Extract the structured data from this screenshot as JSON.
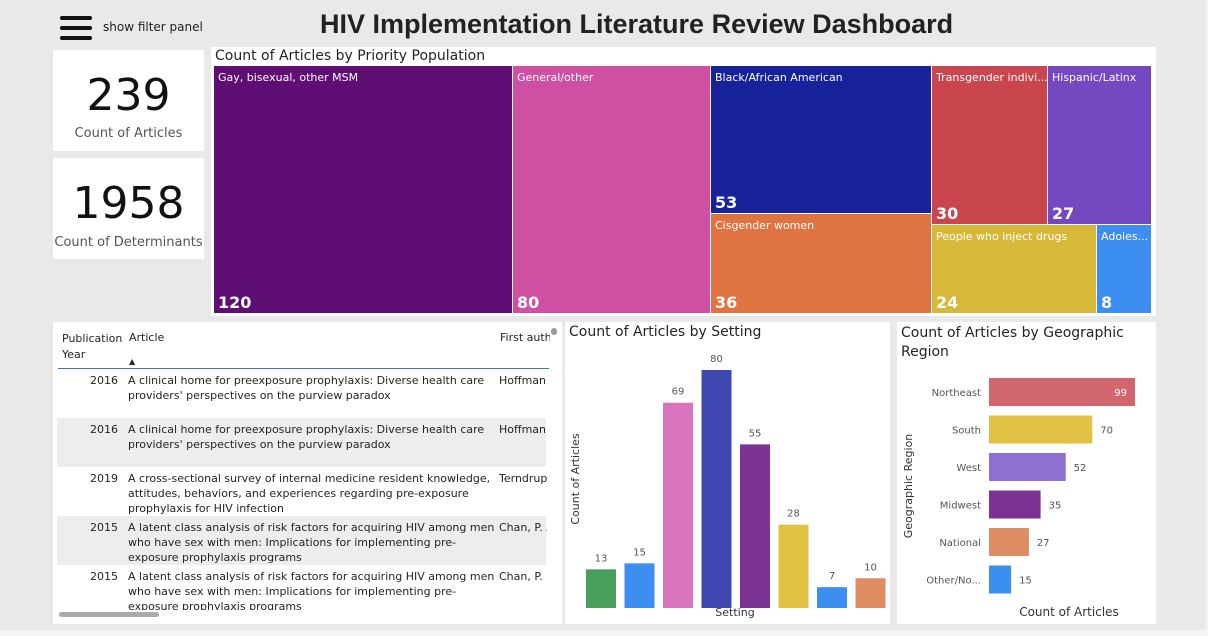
{
  "header": {
    "filter_label": "show filter panel",
    "title": "HIV Implementation Literature Review Dashboard"
  },
  "kpis": [
    {
      "value": "239",
      "label": "Count of Articles"
    },
    {
      "value": "1958",
      "label": "Count of Determinants"
    }
  ],
  "treemap": {
    "title": "Count of Articles by Priority Population",
    "tiles": [
      {
        "label": "Gay, bisexual, other MSM",
        "value": "120",
        "color": "#5f0e73"
      },
      {
        "label": "General/other",
        "value": "80",
        "color": "#cf4fa3"
      },
      {
        "label": "Black/African American",
        "value": "53",
        "color": "#16219a"
      },
      {
        "label": "Cisgender women",
        "value": "36",
        "color": "#e07342"
      },
      {
        "label": "Transgender indivi...",
        "value": "30",
        "color": "#c9464e"
      },
      {
        "label": "Hispanic/Latinx",
        "value": "27",
        "color": "#7348c1"
      },
      {
        "label": "People who inject drugs",
        "value": "24",
        "color": "#d8b839"
      },
      {
        "label": "Adoles...",
        "value": "8",
        "color": "#3d8ef1"
      }
    ]
  },
  "table": {
    "headers": {
      "year": "Publication Year",
      "article": "Article",
      "author": "First autho"
    },
    "sort_indicator": "▲",
    "rows": [
      {
        "year": "2016",
        "article": "A clinical home for preexposure prophylaxis: Diverse health care providers' perspectives on the purview paradox",
        "author": "Hoffman,"
      },
      {
        "year": "2016",
        "article": "A clinical home for preexposure prophylaxis: Diverse health care providers' perspectives on the purview paradox",
        "author": "Hoffman,"
      },
      {
        "year": "2019",
        "article": "A cross-sectional survey of internal medicine resident knowledge, attitudes, behaviors, and experiences regarding pre-exposure prophylaxis for HIV infection",
        "author": "Terndrup,"
      },
      {
        "year": "2015",
        "article": "A latent class analysis of risk factors for acquiring HIV among men who have sex with men: Implications for implementing pre-exposure prophylaxis programs",
        "author": "Chan, P. A"
      },
      {
        "year": "2015",
        "article": "A latent class analysis of risk factors for acquiring HIV among men who have sex with men: Implications for implementing pre-exposure prophylaxis programs",
        "author": "Chan, P. A"
      }
    ]
  },
  "chart_data": [
    {
      "type": "bar",
      "title": "Count of Articles by Setting",
      "xlabel": "Setting",
      "ylabel": "Count of Articles",
      "values": [
        13,
        15,
        69,
        80,
        55,
        28,
        7,
        10
      ],
      "labels": [
        "13",
        "15",
        "69",
        "80",
        "55",
        "28",
        "7",
        "10"
      ],
      "colors": [
        "#4a9e5c",
        "#3d8ef1",
        "#d873bd",
        "#3f48b1",
        "#7b3494",
        "#e2c043",
        "#3d8ef1",
        "#e08c62"
      ],
      "ylim": [
        0,
        80
      ]
    },
    {
      "type": "bar",
      "orientation": "horizontal",
      "title": "Count of Articles by Geographic Region",
      "xlabel": "Count of Articles",
      "ylabel": "Geographic Region",
      "categories": [
        "Northeast",
        "South",
        "West",
        "Midwest",
        "National",
        "Other/No..."
      ],
      "values": [
        99,
        70,
        52,
        35,
        27,
        15
      ],
      "labels": [
        "99",
        "70",
        "52",
        "35",
        "27",
        "15"
      ],
      "colors": [
        "#d2666f",
        "#e2c043",
        "#8f6fcf",
        "#7b3494",
        "#e08c62",
        "#3d8ef1"
      ],
      "xlim": [
        0,
        99
      ]
    }
  ]
}
